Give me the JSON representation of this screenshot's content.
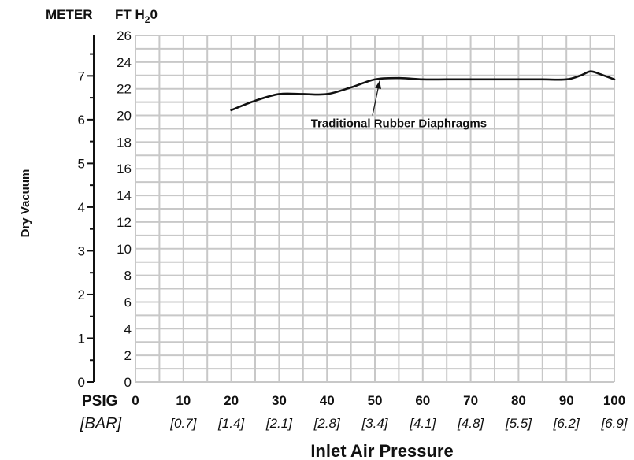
{
  "chart_data": {
    "type": "line",
    "xlabel": "Inlet Air Pressure",
    "ylabel": "Dry Vacuum",
    "x_unit_primary": "PSIG",
    "x_unit_secondary": "[BAR]",
    "y_unit_left": "METER",
    "y_unit_right_main": "FT H",
    "y_unit_right_sub": "2",
    "y_unit_right_end": "0",
    "x_ticks": [
      "0",
      "10",
      "20",
      "30",
      "40",
      "50",
      "60",
      "70",
      "80",
      "90",
      "100"
    ],
    "x_ticks_secondary": [
      "[0.7]",
      "[1.4]",
      "[2.1]",
      "[2.8]",
      "[3.4]",
      "[4.1]",
      "[4.8]",
      "[5.5]",
      "[6.2]",
      "[6.9]"
    ],
    "y_ticks_ft": [
      "0",
      "2",
      "4",
      "6",
      "8",
      "10",
      "12",
      "14",
      "16",
      "18",
      "20",
      "22",
      "24",
      "26"
    ],
    "y_ticks_meter": [
      "0",
      "1",
      "2",
      "3",
      "4",
      "5",
      "6",
      "7"
    ],
    "xlim": [
      0,
      100
    ],
    "ylim": [
      0,
      26
    ],
    "grid": true,
    "series": [
      {
        "x": [
          20,
          25,
          30,
          35,
          40,
          45,
          50,
          55,
          60,
          65,
          70,
          75,
          80,
          85,
          90,
          93,
          95,
          97,
          100
        ],
        "y": [
          20.4,
          21.1,
          21.6,
          21.6,
          21.6,
          22.1,
          22.7,
          22.8,
          22.7,
          22.7,
          22.7,
          22.7,
          22.7,
          22.7,
          22.7,
          23.0,
          23.3,
          23.1,
          22.7
        ]
      }
    ],
    "annotations": [
      {
        "text": "Traditional Rubber Diaphragms",
        "x": 55,
        "y": 19.4,
        "target_x": 51,
        "target_y": 22.6
      }
    ]
  }
}
